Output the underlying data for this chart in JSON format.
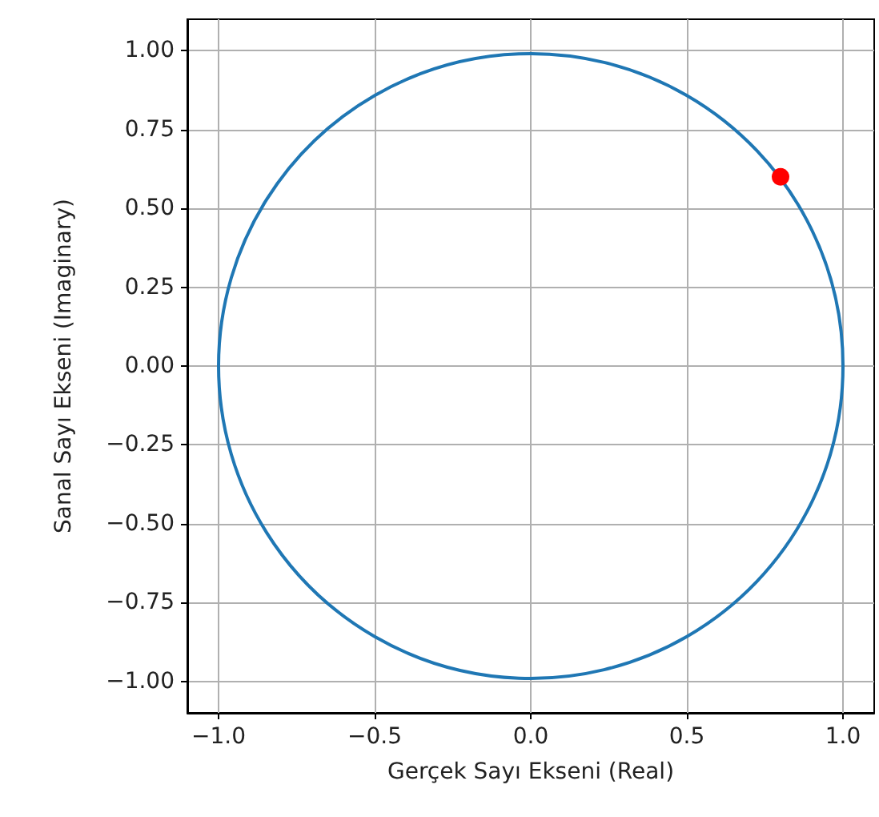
{
  "chart_data": {
    "type": "scatter",
    "xlabel": "Gerçek Sayı Ekseni (Real)",
    "ylabel": "Sanal Sayı Ekseni (Imaginary)",
    "series": [
      {
        "color": "#ff0000",
        "marker": "circle",
        "x": [
          0.8
        ],
        "values": [
          0.6
        ]
      }
    ],
    "xlim": [
      -1.1,
      1.1
    ],
    "xticks": [
      {
        "value": -1,
        "label": "−1.0"
      },
      {
        "value": -0.5,
        "label": "−0.5"
      },
      {
        "value": 0,
        "label": "0.0"
      },
      {
        "value": 0.5,
        "label": "0.5"
      },
      {
        "value": 1,
        "label": "1.0"
      }
    ],
    "ylim": [
      -1.1,
      1.1
    ],
    "yticks": [
      {
        "value": -1,
        "label": "−1.00"
      },
      {
        "value": -0.75,
        "label": "−0.75"
      },
      {
        "value": -0.5,
        "label": "−0.50"
      },
      {
        "value": -0.25,
        "label": "−0.25"
      },
      {
        "value": 0,
        "label": "0.00"
      },
      {
        "value": 0.25,
        "label": "0.25"
      },
      {
        "value": 0.5,
        "label": "0.50"
      },
      {
        "value": 0.75,
        "label": "0.75"
      },
      {
        "value": 1,
        "label": "1.00"
      }
    ],
    "grid": true
  }
}
